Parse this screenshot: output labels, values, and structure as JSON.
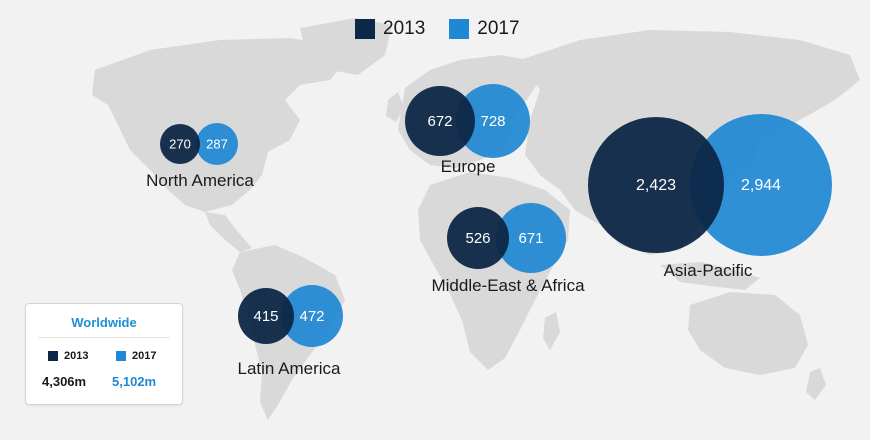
{
  "legend": {
    "items": [
      {
        "label": "2013",
        "color": "#0d2746"
      },
      {
        "label": "2017",
        "color": "#1e88d4"
      }
    ]
  },
  "colors": {
    "y2013": "#0d2746",
    "y2017": "#1e88d4",
    "land": "#d9d9d9",
    "background": "#f2f2f2"
  },
  "regions": [
    {
      "name": "North America",
      "v2013": "270",
      "v2017": "287"
    },
    {
      "name": "Europe",
      "v2013": "672",
      "v2017": "728"
    },
    {
      "name": "Middle-East & Africa",
      "v2013": "526",
      "v2017": "671"
    },
    {
      "name": "Latin America",
      "v2013": "415",
      "v2017": "472"
    },
    {
      "name": "Asia-Pacific",
      "v2013": "2,423",
      "v2017": "2,944"
    }
  ],
  "worldwide": {
    "title": "Worldwide",
    "label_2013": "2013",
    "label_2017": "2017",
    "value_2013": "4,306m",
    "value_2017": "5,102m"
  }
}
